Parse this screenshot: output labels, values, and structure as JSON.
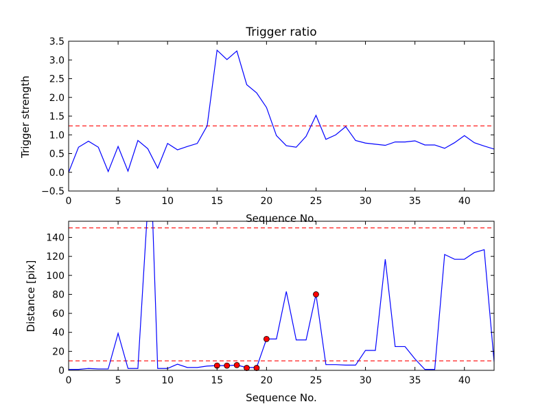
{
  "chart_data": [
    {
      "type": "line",
      "title": "Trigger ratio",
      "xlabel": "Sequence No.",
      "ylabel": "Trigger strength",
      "xlim": [
        0,
        43
      ],
      "ylim": [
        -0.5,
        3.5
      ],
      "xticks": [
        0,
        5,
        10,
        15,
        20,
        25,
        30,
        35,
        40
      ],
      "yticks": [
        -0.5,
        0.0,
        0.5,
        1.0,
        1.5,
        2.0,
        2.5,
        3.0,
        3.5
      ],
      "ytick_labels": [
        "−0.5",
        "0.0",
        "0.5",
        "1.0",
        "1.5",
        "2.0",
        "2.5",
        "3.0",
        "3.5"
      ],
      "series": [
        {
          "color": "#0000ff",
          "x": [
            0,
            1,
            2,
            3,
            4,
            5,
            6,
            7,
            8,
            9,
            10,
            11,
            12,
            13,
            14,
            15,
            16,
            17,
            18,
            19,
            20,
            21,
            22,
            23,
            24,
            25,
            26,
            27,
            28,
            29,
            30,
            31,
            32,
            33,
            34,
            35,
            36,
            37,
            38,
            39,
            40,
            41,
            42,
            43
          ],
          "values": [
            0.0,
            0.67,
            0.83,
            0.67,
            0.02,
            0.69,
            0.03,
            0.85,
            0.63,
            0.11,
            0.77,
            0.6,
            0.69,
            0.77,
            1.24,
            3.26,
            3.01,
            3.24,
            2.34,
            2.12,
            1.73,
            0.98,
            0.71,
            0.67,
            0.96,
            1.52,
            0.88,
            1.0,
            1.22,
            0.85,
            0.78,
            0.75,
            0.72,
            0.81,
            0.81,
            0.84,
            0.73,
            0.73,
            0.64,
            0.79,
            0.98,
            0.79,
            0.7,
            0.62
          ]
        }
      ],
      "hlines": [
        {
          "y": 1.24,
          "color": "#ff0000",
          "style": "dashed"
        }
      ]
    },
    {
      "type": "line",
      "xlabel": "Sequence No.",
      "ylabel": "Distance [pix]",
      "xlim": [
        0,
        43
      ],
      "ylim": [
        0,
        157
      ],
      "xticks": [
        0,
        5,
        10,
        15,
        20,
        25,
        30,
        35,
        40
      ],
      "yticks": [
        0,
        20,
        40,
        60,
        80,
        100,
        120,
        140
      ],
      "ytick_labels": [
        "0",
        "20",
        "40",
        "60",
        "80",
        "100",
        "120",
        "140"
      ],
      "series": [
        {
          "color": "#0000ff",
          "x": [
            0,
            1,
            2,
            3,
            4,
            5,
            6,
            7,
            7.9,
            8.5,
            9,
            10,
            11,
            12,
            13,
            14,
            15,
            16,
            17,
            18,
            19,
            20,
            21,
            22,
            23,
            24,
            25,
            26,
            27,
            28,
            29,
            30,
            31,
            32,
            33,
            34,
            35,
            36,
            37,
            38,
            39,
            40,
            41,
            42,
            43
          ],
          "values": [
            1,
            1,
            2,
            1.5,
            1.5,
            39,
            2,
            2,
            157,
            157,
            2,
            2,
            6.5,
            3,
            3,
            4.5,
            5,
            5,
            5.5,
            3,
            3,
            33,
            33,
            83,
            32,
            32,
            80,
            6,
            6,
            5.5,
            5.5,
            21,
            21,
            117,
            25,
            25,
            12,
            1,
            1,
            122,
            117,
            117,
            124,
            127,
            9
          ]
        }
      ],
      "markers": {
        "color": "#ff0000",
        "x": [
          15,
          16,
          17,
          18,
          19,
          20,
          25
        ],
        "y": [
          5,
          5,
          5.5,
          2.5,
          2.5,
          33,
          80
        ]
      },
      "hlines": [
        {
          "y": 10,
          "color": "#ff0000",
          "style": "dashed"
        },
        {
          "y": 150,
          "color": "#ff0000",
          "style": "dashed"
        }
      ]
    }
  ]
}
